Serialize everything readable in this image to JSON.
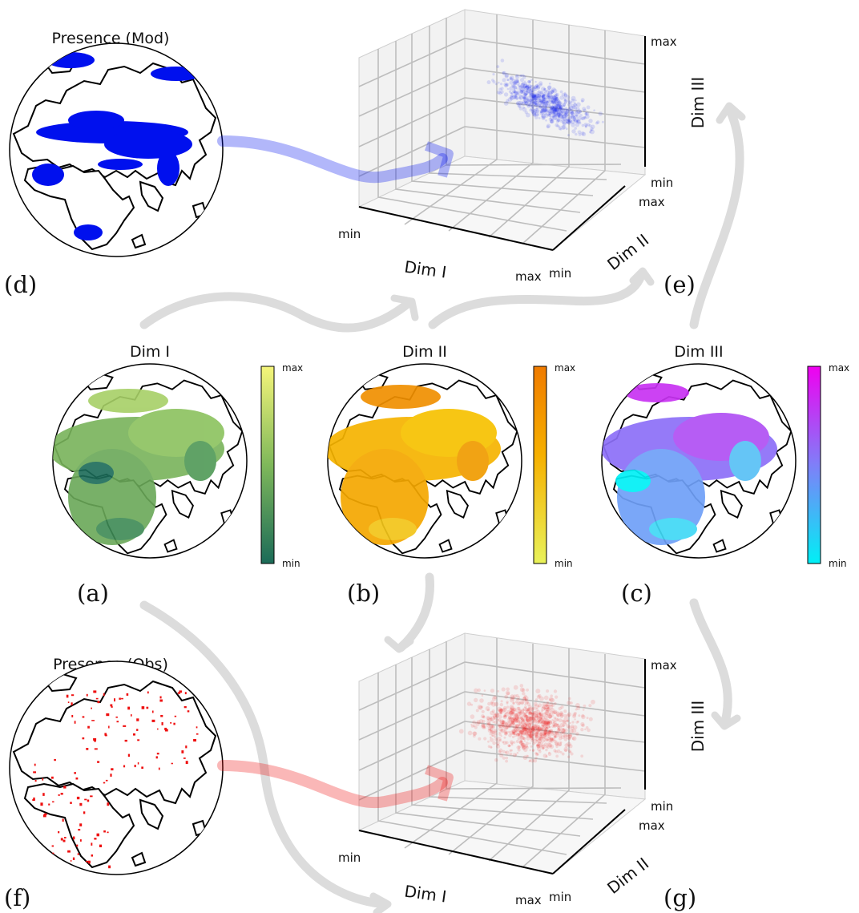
{
  "maps": {
    "mod_title": "Presence (Mod)",
    "obs_title": "Presence (Obs)",
    "dim1_title": "Dim I",
    "dim2_title": "Dim II",
    "dim3_title": "Dim III"
  },
  "colorbars": {
    "max_label": "max",
    "min_label": "min"
  },
  "panels": {
    "a": "(a)",
    "b": "(b)",
    "c": "(c)",
    "d": "(d)",
    "e": "(e)",
    "f": "(f)",
    "g": "(g)"
  },
  "axes3d": {
    "x_label": "Dim I",
    "y_label": "Dim II",
    "z_label": "Dim III",
    "tick_min": "min",
    "tick_max": "max"
  },
  "colors": {
    "modeled": "#0010ee",
    "observed": "#ee1010",
    "dim1_low": "#1b6b58",
    "dim1_high": "#f5f57a",
    "dim2_low": "#e9f25a",
    "dim2_high": "#f07b00",
    "dim3_low": "#00f0f6",
    "dim3_high": "#f000f0",
    "flow_arrow": "#dddddd"
  }
}
